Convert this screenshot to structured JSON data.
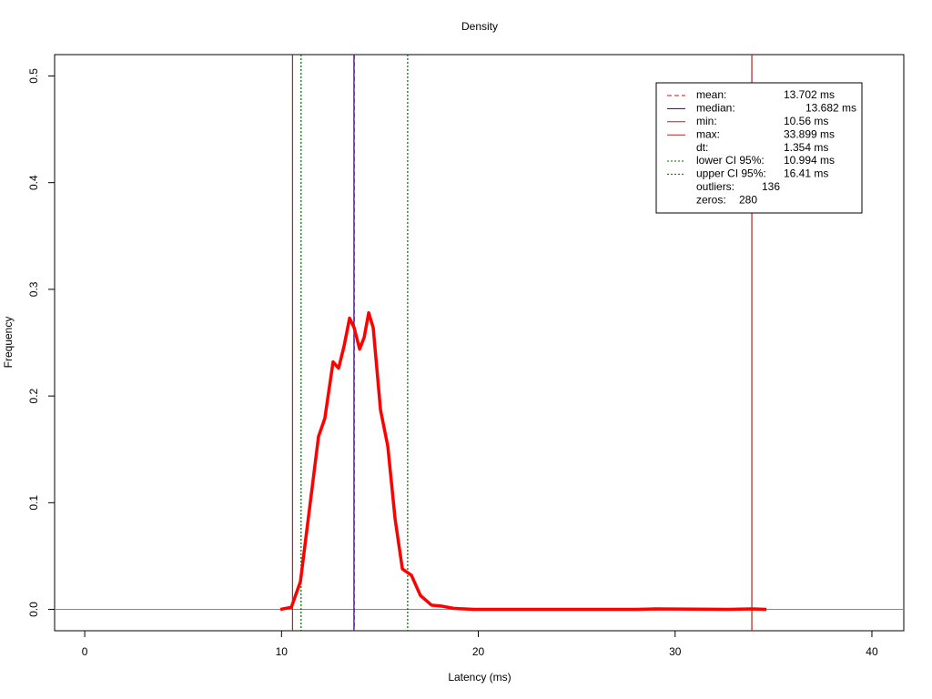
{
  "chart_data": {
    "type": "line",
    "title": "Density",
    "x_label": "Latency (ms)",
    "y_label": "Frequency",
    "xlim": [
      -1.53,
      41.62
    ],
    "ylim": [
      -0.02,
      0.52
    ],
    "xticks": [
      0,
      10,
      20,
      30,
      40
    ],
    "yticks": [
      {
        "value": 0,
        "label": "0.0"
      },
      0.1,
      0.2,
      0.3,
      0.4,
      0.5
    ],
    "series": [
      {
        "name": "density",
        "color": "#ff0000",
        "x": [
          9.94,
          10.5,
          10.96,
          11.42,
          11.88,
          12.2,
          12.62,
          12.9,
          13.18,
          13.46,
          13.69,
          13.97,
          14.2,
          14.43,
          14.66,
          15.03,
          15.4,
          15.77,
          16.14,
          16.6,
          17.06,
          17.62,
          18.17,
          18.73,
          19.75,
          28.07,
          29.0,
          32.7,
          33.9,
          34.64
        ],
        "values": [
          0,
          0.002,
          0.026,
          0.094,
          0.162,
          0.179,
          0.232,
          0.226,
          0.247,
          0.273,
          0.264,
          0.244,
          0.255,
          0.278,
          0.264,
          0.187,
          0.153,
          0.085,
          0.038,
          0.032,
          0.013,
          0.004,
          0.003,
          0.001,
          0,
          0,
          0.0005,
          0,
          0.0005,
          0
        ]
      }
    ],
    "vlines": [
      {
        "name": "min",
        "value": 10.56,
        "color": "#b22222",
        "dash": "none"
      },
      {
        "name": "max",
        "value": 33.899,
        "color": "#b22222",
        "dash": "none"
      },
      {
        "name": "lower CI",
        "value": 10.994,
        "color": "#006400",
        "dash": "2,2"
      },
      {
        "name": "upper CI",
        "value": 16.41,
        "color": "#006400",
        "dash": "2,2"
      },
      {
        "name": "median",
        "value": 13.682,
        "color": "#0000cd",
        "dash": "none"
      },
      {
        "name": "mean",
        "value": 13.702,
        "color": "#ff0000",
        "dash": "5,3"
      }
    ],
    "legend": [
      {
        "label": "mean:",
        "value": "13.702 ms",
        "color": "#ff0000",
        "dash": "5,3"
      },
      {
        "label": "median:",
        "value": "13.682 ms",
        "color": "#0000cd",
        "dash": "none"
      },
      {
        "label": "min:",
        "value": "10.56 ms",
        "color": "#b22222",
        "dash": "none"
      },
      {
        "label": "max:",
        "value": "33.899 ms",
        "color": "#b22222",
        "dash": "none"
      },
      {
        "label": "dt:",
        "value": "1.354 ms"
      },
      {
        "label": "lower CI 95%:",
        "value": "10.994 ms",
        "color": "#006400",
        "dash": "2,2"
      },
      {
        "label": "upper CI 95%:",
        "value": "16.41 ms",
        "color": "#006400",
        "dash": "2,2"
      },
      {
        "label": "outliers:",
        "value": "136"
      },
      {
        "label": "zeros:",
        "value": "280"
      }
    ]
  }
}
